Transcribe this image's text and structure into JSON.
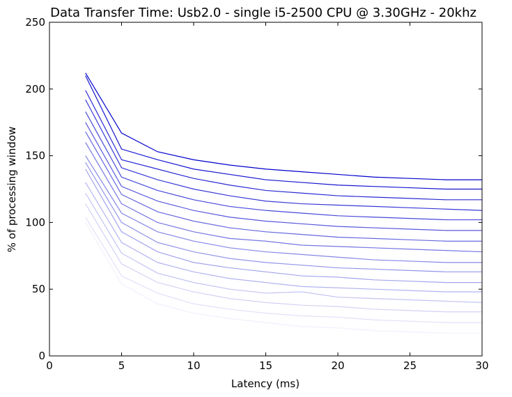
{
  "chart_data": {
    "type": "line",
    "title": "Data Transfer Time: Usb2.0 - single i5-2500 CPU @ 3.30GHz - 20khz",
    "xlabel": "Latency (ms)",
    "ylabel": "% of processing window",
    "xlim": [
      0,
      30
    ],
    "ylim": [
      0,
      250
    ],
    "xticks": [
      0,
      5,
      10,
      15,
      20,
      25,
      30
    ],
    "yticks": [
      0,
      50,
      100,
      150,
      200,
      250
    ],
    "grid": false,
    "legend": "none",
    "line_color": "#0000cc",
    "x": [
      2.5,
      5,
      7.5,
      10,
      12.5,
      15,
      17.5,
      20,
      22.5,
      25,
      27.5,
      30
    ],
    "series": [
      {
        "opacity": 0.06,
        "values": [
          100,
          54,
          39,
          32,
          28,
          25,
          22,
          21,
          19,
          18,
          17,
          17
        ]
      },
      {
        "opacity": 0.12,
        "values": [
          104,
          60,
          47,
          39,
          35,
          32,
          30,
          29,
          27,
          26,
          25,
          25
        ]
      },
      {
        "opacity": 0.18,
        "values": [
          114,
          69,
          55,
          48,
          43,
          40,
          38,
          37,
          35,
          34,
          33,
          33
        ]
      },
      {
        "opacity": 0.24,
        "values": [
          122,
          77,
          62,
          55,
          50,
          47,
          48,
          44,
          43,
          42,
          41,
          40
        ]
      },
      {
        "opacity": 0.3,
        "values": [
          130,
          85,
          70,
          63,
          58,
          55,
          52,
          51,
          50,
          49,
          48,
          48
        ]
      },
      {
        "opacity": 0.36,
        "values": [
          140,
          93,
          78,
          70,
          66,
          63,
          60,
          59,
          57,
          56,
          55,
          55
        ]
      },
      {
        "opacity": 0.42,
        "values": [
          145,
          100,
          85,
          78,
          73,
          70,
          68,
          66,
          65,
          64,
          63,
          63
        ]
      },
      {
        "opacity": 0.48,
        "values": [
          150,
          107,
          93,
          86,
          81,
          78,
          76,
          74,
          72,
          71,
          70,
          70
        ]
      },
      {
        "opacity": 0.54,
        "values": [
          160,
          114,
          100,
          93,
          88,
          86,
          83,
          82,
          81,
          80,
          79,
          78
        ]
      },
      {
        "opacity": 0.6,
        "values": [
          168,
          121,
          108,
          101,
          96,
          93,
          91,
          89,
          88,
          87,
          86,
          86
        ]
      },
      {
        "opacity": 0.66,
        "values": [
          175,
          127,
          116,
          109,
          104,
          101,
          99,
          97,
          96,
          95,
          94,
          94
        ]
      },
      {
        "opacity": 0.72,
        "values": [
          183,
          134,
          124,
          117,
          112,
          109,
          107,
          105,
          104,
          103,
          102,
          102
        ]
      },
      {
        "opacity": 0.78,
        "values": [
          192,
          141,
          132,
          125,
          120,
          116,
          114,
          113,
          112,
          111,
          110,
          109
        ]
      },
      {
        "opacity": 0.84,
        "values": [
          199,
          147,
          140,
          133,
          128,
          124,
          122,
          120,
          119,
          118,
          117,
          117
        ]
      },
      {
        "opacity": 0.92,
        "values": [
          210,
          155,
          147,
          140,
          136,
          132,
          130,
          128,
          127,
          126,
          125,
          125
        ]
      },
      {
        "opacity": 1.0,
        "values": [
          212,
          167,
          153,
          147,
          143,
          140,
          138,
          136,
          134,
          133,
          132,
          132
        ]
      }
    ]
  }
}
